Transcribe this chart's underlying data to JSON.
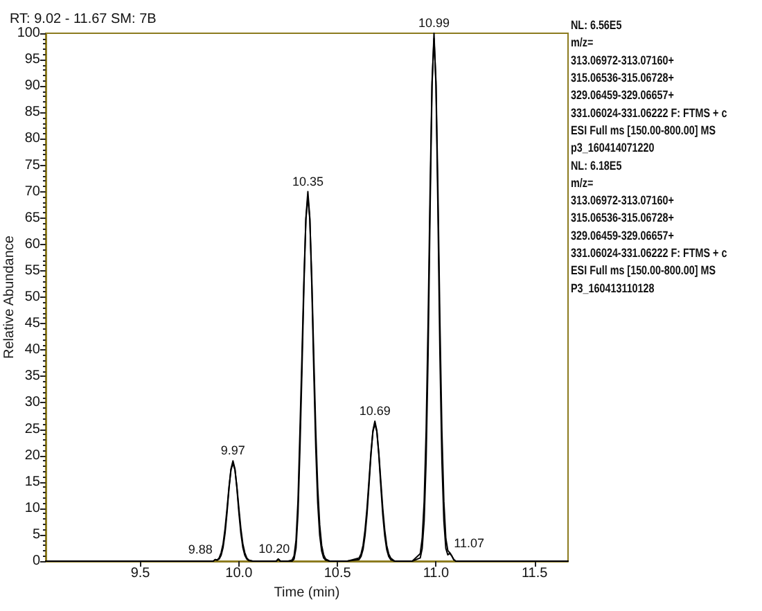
{
  "chart_data": {
    "type": "line",
    "title": "RT: 9.02 - 11.67 SM: 7B",
    "xlabel": "Time (min)",
    "ylabel": "Relative Abundance",
    "xlim": [
      9.02,
      11.67
    ],
    "xticks": [
      9.5,
      {
        "value": 10,
        "label": "10.0"
      },
      10.5,
      {
        "value": 11,
        "label": "11.0"
      },
      11.5
    ],
    "ylim": [
      0,
      100
    ],
    "yticks": [
      0,
      5,
      10,
      15,
      20,
      25,
      30,
      35,
      40,
      45,
      50,
      55,
      60,
      65,
      70,
      75,
      80,
      85,
      90,
      95,
      100
    ],
    "x": [
      9.02,
      9.5,
      9.8,
      9.87,
      9.88,
      9.89,
      9.9,
      9.91,
      9.92,
      9.93,
      9.94,
      9.95,
      9.96,
      9.97,
      9.98,
      9.99,
      10.0,
      10.01,
      10.02,
      10.03,
      10.04,
      10.05,
      10.07,
      10.15,
      10.19,
      10.2,
      10.21,
      10.25,
      10.27,
      10.28,
      10.29,
      10.3,
      10.31,
      10.32,
      10.33,
      10.34,
      10.35,
      10.36,
      10.37,
      10.38,
      10.39,
      10.4,
      10.41,
      10.42,
      10.43,
      10.44,
      10.46,
      10.55,
      10.61,
      10.62,
      10.63,
      10.64,
      10.65,
      10.66,
      10.67,
      10.68,
      10.69,
      10.7,
      10.71,
      10.72,
      10.73,
      10.74,
      10.75,
      10.76,
      10.77,
      10.79,
      10.88,
      10.92,
      10.93,
      10.94,
      10.95,
      10.96,
      10.97,
      10.98,
      10.99,
      11.0,
      11.01,
      11.02,
      11.03,
      11.04,
      11.05,
      11.06,
      11.07,
      11.08,
      11.09,
      11.1,
      11.2,
      11.67
    ],
    "series": [
      {
        "color": "#000000",
        "values": [
          0,
          0,
          0,
          0,
          0.3,
          0.2,
          0.4,
          1.1,
          2.6,
          5.3,
          9.2,
          13.8,
          17.5,
          19,
          17.5,
          13.8,
          9.2,
          5.3,
          2.6,
          1.1,
          0.4,
          0.1,
          0,
          0,
          0,
          0.4,
          0,
          0,
          0,
          0.4,
          2.5,
          9,
          21.5,
          36,
          52,
          65,
          70,
          65,
          52,
          36,
          21.5,
          11,
          4.9,
          1.9,
          0.6,
          0.2,
          0,
          0,
          0.3,
          0.9,
          2.2,
          4.8,
          8.8,
          14.3,
          20.1,
          24.7,
          26.5,
          24.7,
          20.1,
          14.3,
          8.8,
          4.8,
          2.2,
          0.9,
          0.3,
          0,
          0,
          0.6,
          2.4,
          7.6,
          19,
          39,
          66,
          90,
          100,
          90,
          66,
          39,
          19,
          7.6,
          2.4,
          1.2,
          1.5,
          1,
          0.3,
          0,
          0,
          0
        ]
      },
      {
        "color": "#000000",
        "values": [
          0,
          0,
          0,
          0,
          0.3,
          0.2,
          0.6,
          1.6,
          3.3,
          6.2,
          10,
          14.1,
          17.3,
          18.5,
          17.3,
          14.1,
          10,
          6.2,
          3.3,
          1.6,
          0.6,
          0.2,
          0,
          0,
          0,
          0.4,
          0,
          0,
          0.2,
          1,
          4,
          11.5,
          24.9,
          38.9,
          53.4,
          64.7,
          69,
          64.7,
          53.4,
          38.9,
          24.9,
          14,
          6.9,
          3,
          1.2,
          0.4,
          0,
          0,
          0.6,
          1.4,
          3,
          5.9,
          10,
          15.2,
          20.5,
          24.5,
          26,
          24.5,
          20.5,
          15.2,
          10,
          5.9,
          3,
          1.4,
          0.6,
          0,
          0,
          1.4,
          4.3,
          11.3,
          24.7,
          45.3,
          70,
          90.8,
          99,
          90.8,
          70,
          45.3,
          24.7,
          11.3,
          4.3,
          2,
          1.6,
          1,
          0.3,
          0,
          0,
          0
        ]
      }
    ],
    "annotations": [
      {
        "text": "9.88",
        "x": 9.88,
        "y": 0.3
      },
      {
        "text": "9.97",
        "x": 9.97,
        "y": 19
      },
      {
        "text": "10.20",
        "x": 10.2,
        "y": 0.4
      },
      {
        "text": "10.35",
        "x": 10.35,
        "y": 70
      },
      {
        "text": "10.69",
        "x": 10.69,
        "y": 26.5
      },
      {
        "text": "10.99",
        "x": 10.99,
        "y": 100
      },
      {
        "text": "11.07",
        "x": 11.07,
        "y": 1.5
      },
      "NL: 6.56E5\nm/z=\n313.06972-313.07160+\n315.06536-315.06728+\n329.06459-329.06657+\n331.06024-331.06222 F: FTMS + c\nESI Full ms [150.00-800.00] MS\np3_160414071220",
      "NL: 6.18E5\nm/z=\n313.06972-313.07160+\n315.06536-315.06728+\n329.06459-329.06657+\n331.06024-331.06222 F: FTMS + c\nESI Full ms [150.00-800.00] MS\nP3_160413110128"
    ]
  }
}
